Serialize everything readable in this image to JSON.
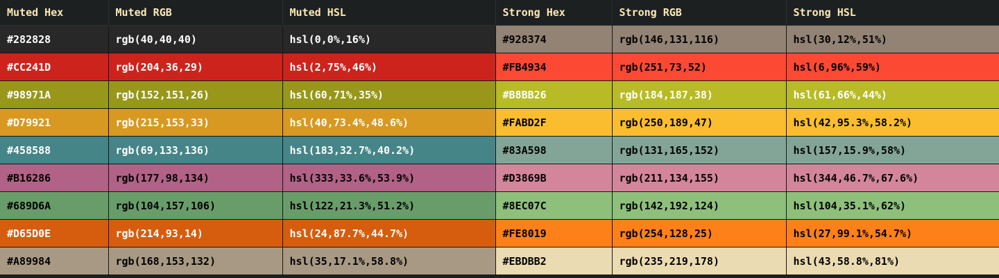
{
  "headers": {
    "muted_hex": "Muted Hex",
    "muted_rgb": "Muted RGB",
    "muted_hsl": "Muted HSL",
    "strong_hex": "Strong Hex",
    "strong_rgb": "Strong RGB",
    "strong_hsl": "Strong HSL"
  },
  "colors": {
    "header_bg": "#1D2021",
    "header_text": "#FBE9B5"
  },
  "rows": [
    {
      "muted": {
        "hex": "#282828",
        "rgb": "rgb(40,40,40)",
        "hsl": "hsl(0,0%,16%)",
        "text": "#FFFFFF"
      },
      "strong": {
        "hex": "#928374",
        "rgb": "rgb(146,131,116)",
        "hsl": "hsl(30,12%,51%)",
        "text": "#000000"
      }
    },
    {
      "muted": {
        "hex": "#CC241D",
        "rgb": "rgb(204,36,29)",
        "hsl": "hsl(2,75%,46%)",
        "text": "#FFFFFF"
      },
      "strong": {
        "hex": "#FB4934",
        "rgb": "rgb(251,73,52)",
        "hsl": "hsl(6,96%,59%)",
        "text": "#000000"
      }
    },
    {
      "muted": {
        "hex": "#98971A",
        "rgb": "rgb(152,151,26)",
        "hsl": "hsl(60,71%,35%)",
        "text": "#FFFFFF"
      },
      "strong": {
        "hex": "#B8BB26",
        "rgb": "rgb(184,187,38)",
        "hsl": "hsl(61,66%,44%)",
        "text": "#FFFFFF"
      }
    },
    {
      "muted": {
        "hex": "#D79921",
        "rgb": "rgb(215,153,33)",
        "hsl": "hsl(40,73.4%,48.6%)",
        "text": "#FFFFFF"
      },
      "strong": {
        "hex": "#FABD2F",
        "rgb": "rgb(250,189,47)",
        "hsl": "hsl(42,95.3%,58.2%)",
        "text": "#000000"
      }
    },
    {
      "muted": {
        "hex": "#458588",
        "rgb": "rgb(69,133,136)",
        "hsl": "hsl(183,32.7%,40.2%)",
        "text": "#FFFFFF"
      },
      "strong": {
        "hex": "#83A598",
        "rgb": "rgb(131,165,152)",
        "hsl": "hsl(157,15.9%,58%)",
        "text": "#000000"
      }
    },
    {
      "muted": {
        "hex": "#B16286",
        "rgb": "rgb(177,98,134)",
        "hsl": "hsl(333,33.6%,53.9%)",
        "text": "#000000"
      },
      "strong": {
        "hex": "#D3869B",
        "rgb": "rgb(211,134,155)",
        "hsl": "hsl(344,46.7%,67.6%)",
        "text": "#000000"
      }
    },
    {
      "muted": {
        "hex": "#689D6A",
        "rgb": "rgb(104,157,106)",
        "hsl": "hsl(122,21.3%,51.2%)",
        "text": "#000000"
      },
      "strong": {
        "hex": "#8EC07C",
        "rgb": "rgb(142,192,124)",
        "hsl": "hsl(104,35.1%,62%)",
        "text": "#000000"
      }
    },
    {
      "muted": {
        "hex": "#D65D0E",
        "rgb": "rgb(214,93,14)",
        "hsl": "hsl(24,87.7%,44.7%)",
        "text": "#FFFFFF"
      },
      "strong": {
        "hex": "#FE8019",
        "rgb": "rgb(254,128,25)",
        "hsl": "hsl(27,99.1%,54.7%)",
        "text": "#000000"
      }
    },
    {
      "muted": {
        "hex": "#A89984",
        "rgb": "rgb(168,153,132)",
        "hsl": "hsl(35,17.1%,58.8%)",
        "text": "#000000"
      },
      "strong": {
        "hex": "#EBDBB2",
        "rgb": "rgb(235,219,178)",
        "hsl": "hsl(43,58.8%,81%)",
        "text": "#000000"
      }
    }
  ]
}
